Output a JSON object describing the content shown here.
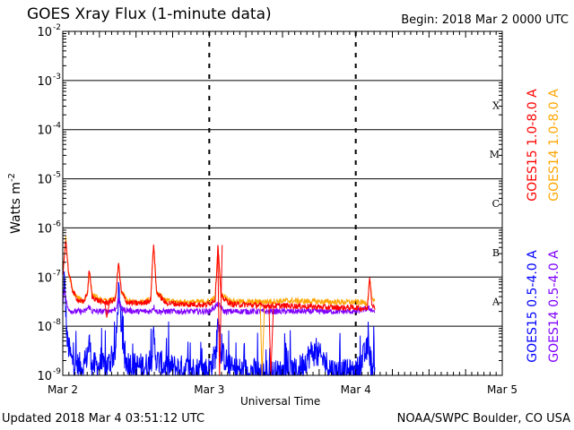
{
  "header": {
    "title": "GOES Xray Flux (1-minute data)",
    "begin": "Begin:  2018 Mar 2 0000 UTC"
  },
  "footer": {
    "updated": "Updated 2018 Mar  4 03:51:12 UTC",
    "credit": "NOAA/SWPC Boulder, CO USA"
  },
  "colors": {
    "goes15_long": "#ff0000",
    "goes14_long": "#ffa500",
    "goes15_short": "#0000ff",
    "goes14_short": "#7f00ff"
  },
  "chart_data": {
    "type": "line",
    "yscale": "log",
    "ylim": [
      1e-09,
      0.01
    ],
    "xlim": [
      0,
      3
    ],
    "ylabel_base": "Watts m",
    "ylabel_exp": "-2",
    "xlabel": "Universal Time",
    "x_unit": "days since 2018 Mar 2 00:00 UTC",
    "x_ticks": [
      {
        "x": 0,
        "label": "Mar 2"
      },
      {
        "x": 1,
        "label": "Mar 3"
      },
      {
        "x": 2,
        "label": "Mar 4"
      },
      {
        "x": 3,
        "label": "Mar 5"
      }
    ],
    "y_ticks": [
      {
        "exp": -2,
        "label": "10",
        "sup": "-2"
      },
      {
        "exp": -3,
        "label": "10",
        "sup": "-3"
      },
      {
        "exp": -4,
        "label": "10",
        "sup": "-4"
      },
      {
        "exp": -5,
        "label": "10",
        "sup": "-5"
      },
      {
        "exp": -6,
        "label": "10",
        "sup": "-6"
      },
      {
        "exp": -7,
        "label": "10",
        "sup": "-7"
      },
      {
        "exp": -8,
        "label": "10",
        "sup": "-8"
      },
      {
        "exp": -9,
        "label": "10",
        "sup": "-9"
      }
    ],
    "flare_classes": [
      {
        "label": "X",
        "exp": -4
      },
      {
        "label": "M",
        "exp": -5
      },
      {
        "label": "C",
        "exp": -6
      },
      {
        "label": "B",
        "exp": -7
      },
      {
        "label": "A",
        "exp": -8
      }
    ],
    "grid": true,
    "legend": "right side, vertical",
    "series": [
      {
        "name": "GOES15 1.0-8.0 A",
        "color": "#ff0000",
        "points": [
          [
            0.0,
            1e-07
          ],
          [
            0.02,
            6e-07
          ],
          [
            0.04,
            1.2e-07
          ],
          [
            0.07,
            5e-08
          ],
          [
            0.1,
            3.5e-08
          ],
          [
            0.14,
            3e-08
          ],
          [
            0.17,
            5e-08
          ],
          [
            0.18,
            1.5e-07
          ],
          [
            0.2,
            4e-08
          ],
          [
            0.25,
            3.2e-08
          ],
          [
            0.3,
            3e-08
          ],
          [
            0.36,
            3.5e-08
          ],
          [
            0.38,
            2e-07
          ],
          [
            0.4,
            5e-08
          ],
          [
            0.44,
            3e-08
          ],
          [
            0.5,
            2.9e-08
          ],
          [
            0.56,
            3e-08
          ],
          [
            0.6,
            3.5e-08
          ],
          [
            0.62,
            5e-07
          ],
          [
            0.64,
            5e-08
          ],
          [
            0.7,
            3e-08
          ],
          [
            0.8,
            2.8e-08
          ],
          [
            0.9,
            2.8e-08
          ],
          [
            0.98,
            2.7e-08
          ],
          [
            1.0,
            2.9e-08
          ],
          [
            1.04,
            3.5e-08
          ],
          [
            1.06,
            4.5e-07
          ],
          [
            1.08,
            4e-08
          ],
          [
            1.15,
            2.8e-08
          ],
          [
            1.3,
            2.7e-08
          ],
          [
            1.4,
            2.6e-08
          ],
          [
            1.55,
            2.6e-08
          ],
          [
            1.7,
            2.5e-08
          ],
          [
            1.85,
            2.4e-08
          ],
          [
            2.0,
            2.4e-08
          ],
          [
            2.05,
            2.3e-08
          ],
          [
            2.08,
            2.3e-08
          ],
          [
            2.095,
            1.1e-07
          ],
          [
            2.11,
            3e-08
          ],
          [
            2.13,
            2.2e-08
          ]
        ],
        "dips": [
          [
            0.3,
            1.5e-08
          ],
          [
            1.07,
            1e-09
          ],
          [
            1.42,
            1e-09
          ]
        ]
      },
      {
        "name": "GOES14 1.0-8.0 A",
        "color": "#ffa500",
        "points": [
          [
            0.0,
            1e-07
          ],
          [
            0.02,
            6e-07
          ],
          [
            0.04,
            1.2e-07
          ],
          [
            0.07,
            5e-08
          ],
          [
            0.1,
            3.8e-08
          ],
          [
            0.14,
            3.2e-08
          ],
          [
            0.17,
            5e-08
          ],
          [
            0.18,
            1.4e-07
          ],
          [
            0.2,
            4.5e-08
          ],
          [
            0.25,
            3.4e-08
          ],
          [
            0.3,
            3.2e-08
          ],
          [
            0.36,
            3.6e-08
          ],
          [
            0.38,
            1.9e-07
          ],
          [
            0.4,
            5e-08
          ],
          [
            0.44,
            3.3e-08
          ],
          [
            0.5,
            3.1e-08
          ],
          [
            0.56,
            3.2e-08
          ],
          [
            0.6,
            3.6e-08
          ],
          [
            0.62,
            4.8e-07
          ],
          [
            0.64,
            5e-08
          ],
          [
            0.7,
            3.3e-08
          ],
          [
            0.8,
            3.1e-08
          ],
          [
            0.9,
            3.1e-08
          ],
          [
            1.0,
            3.2e-08
          ],
          [
            1.04,
            3.8e-08
          ],
          [
            1.06,
            4.2e-07
          ],
          [
            1.08,
            4.5e-08
          ],
          [
            1.15,
            3.2e-08
          ],
          [
            1.3,
            3.1e-08
          ],
          [
            1.4,
            3.2e-08
          ],
          [
            1.55,
            3.3e-08
          ],
          [
            1.7,
            3.2e-08
          ],
          [
            1.85,
            3.1e-08
          ],
          [
            2.0,
            3.1e-08
          ],
          [
            2.08,
            3e-08
          ],
          [
            2.095,
            1e-07
          ],
          [
            2.11,
            3.5e-08
          ],
          [
            2.13,
            3e-08
          ]
        ],
        "dips": [
          [
            1.36,
            1e-09
          ]
        ]
      },
      {
        "name": "GOES15 0.5-4.0 A",
        "color": "#0000ff",
        "points": [
          [
            0.0,
            2e-08
          ],
          [
            0.01,
            1e-07
          ],
          [
            0.03,
            5e-09
          ],
          [
            0.06,
            2e-09
          ],
          [
            0.1,
            1.6e-09
          ],
          [
            0.15,
            1.5e-09
          ],
          [
            0.17,
            3e-09
          ],
          [
            0.18,
            5e-09
          ],
          [
            0.2,
            1.6e-09
          ],
          [
            0.3,
            1.5e-09
          ],
          [
            0.36,
            3e-09
          ],
          [
            0.37,
            1e-08
          ],
          [
            0.38,
            5e-08
          ],
          [
            0.4,
            1e-08
          ],
          [
            0.42,
            2e-09
          ],
          [
            0.5,
            1.5e-09
          ],
          [
            0.6,
            1.6e-09
          ],
          [
            0.62,
            6e-09
          ],
          [
            0.64,
            2e-09
          ],
          [
            0.7,
            1.5e-09
          ],
          [
            0.8,
            1.4e-09
          ],
          [
            0.9,
            1.3e-09
          ],
          [
            1.0,
            1.3e-09
          ],
          [
            1.05,
            3e-09
          ],
          [
            1.06,
            2e-08
          ],
          [
            1.08,
            3e-09
          ],
          [
            1.15,
            1.3e-09
          ],
          [
            1.3,
            1.2e-09
          ],
          [
            1.45,
            1.1e-09
          ],
          [
            1.6,
            1.2e-09
          ],
          [
            1.7,
            3e-09
          ],
          [
            1.75,
            2.5e-09
          ],
          [
            1.85,
            1.2e-09
          ],
          [
            2.0,
            1.1e-09
          ],
          [
            2.09,
            4e-09
          ],
          [
            2.1,
            2e-09
          ],
          [
            2.13,
            1.1e-09
          ]
        ],
        "noise": true
      },
      {
        "name": "GOES14 0.5-4.0 A",
        "color": "#7f00ff",
        "points": [
          [
            0.0,
            3e-08
          ],
          [
            0.01,
            6e-08
          ],
          [
            0.03,
            2.5e-08
          ],
          [
            0.06,
            2e-08
          ],
          [
            0.1,
            2e-08
          ],
          [
            0.15,
            2e-08
          ],
          [
            0.18,
            2.5e-08
          ],
          [
            0.2,
            2e-08
          ],
          [
            0.3,
            2e-08
          ],
          [
            0.36,
            2.2e-08
          ],
          [
            0.38,
            3.5e-08
          ],
          [
            0.4,
            2.2e-08
          ],
          [
            0.5,
            2e-08
          ],
          [
            0.6,
            2e-08
          ],
          [
            0.62,
            2.5e-08
          ],
          [
            0.64,
            2e-08
          ],
          [
            0.7,
            2e-08
          ],
          [
            0.8,
            2e-08
          ],
          [
            0.9,
            2e-08
          ],
          [
            1.0,
            2e-08
          ],
          [
            1.06,
            2.8e-08
          ],
          [
            1.1,
            2e-08
          ],
          [
            1.3,
            2e-08
          ],
          [
            1.5,
            2e-08
          ],
          [
            1.7,
            2e-08
          ],
          [
            1.9,
            2e-08
          ],
          [
            2.0,
            2e-08
          ],
          [
            2.09,
            2.3e-08
          ],
          [
            2.13,
            2e-08
          ]
        ]
      }
    ]
  }
}
